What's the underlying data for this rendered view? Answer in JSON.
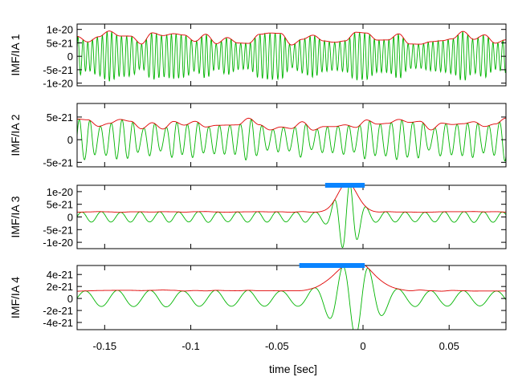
{
  "chart_data": {
    "type": "line",
    "xlabel": "time [sec]",
    "xlim": [
      -0.166,
      0.083
    ],
    "xticks": [
      -0.15,
      -0.1,
      -0.05,
      0,
      0.05
    ],
    "xtick_labels": [
      "-0.15",
      "-0.1",
      "-0.05",
      "0",
      "0.05"
    ],
    "series_colors": {
      "imf": "#00b400",
      "amplitude": "#e00000",
      "highlight": "#0a84ff"
    },
    "panels": [
      {
        "ylabel": "IMF/IA 1",
        "ylim": [
          -1.1e-20,
          1.2e-20
        ],
        "yticks": [
          1e-20,
          5e-21,
          0,
          -5e-21,
          -1e-20
        ],
        "ytick_labels": [
          "1e-20",
          "5e-21",
          "0",
          "-5e-21",
          "-1e-20"
        ],
        "series": [
          {
            "name": "IMF",
            "kind": "noise",
            "freq_hz": 300,
            "envelope": [
              [
                -0.166,
                6.5e-21
              ],
              [
                0.083,
                6.5e-21
              ]
            ],
            "variability": 0.45
          },
          {
            "name": "Instantaneous amplitude",
            "kind": "envelope",
            "of": "IMF"
          }
        ]
      },
      {
        "ylabel": "IMF/IA 2",
        "ylim": [
          -6e-21,
          8e-21
        ],
        "yticks": [
          5e-21,
          0,
          -5e-21
        ],
        "ytick_labels": [
          "5e-21",
          "0",
          "-5e-21"
        ],
        "series": [
          {
            "name": "IMF",
            "kind": "noise",
            "freq_hz": 140,
            "envelope": [
              [
                -0.166,
                3.5e-21
              ],
              [
                0.083,
                3.5e-21
              ]
            ],
            "variability": 0.4
          },
          {
            "name": "Instantaneous amplitude",
            "kind": "envelope",
            "of": "IMF"
          }
        ]
      },
      {
        "ylabel": "IMF/IA 3",
        "ylim": [
          -1.25e-20,
          1.25e-20
        ],
        "yticks": [
          1e-20,
          5e-21,
          0,
          -5e-21,
          -1e-20
        ],
        "ytick_labels": [
          "1e-20",
          "5e-21",
          "0",
          "-5e-21",
          "-1e-20"
        ],
        "highlight": [
          -0.022,
          0.001
        ],
        "series": [
          {
            "name": "IMF",
            "kind": "burst",
            "freq_hz": 80,
            "base": 1.8e-21,
            "peak_t": -0.009,
            "peak_amp": 1.15e-20,
            "width": 0.008
          },
          {
            "name": "Instantaneous amplitude",
            "kind": "envelope",
            "of": "IMF"
          }
        ]
      },
      {
        "ylabel": "IMF/IA 4",
        "ylim": [
          -5.2e-21,
          5.5e-21
        ],
        "yticks": [
          4e-21,
          2e-21,
          0,
          -2e-21,
          -4e-21
        ],
        "ytick_labels": [
          "4e-21",
          "2e-21",
          "0",
          "-2e-21",
          "-4e-21"
        ],
        "highlight": [
          -0.037,
          0.001
        ],
        "series": [
          {
            "name": "IMF",
            "kind": "burst",
            "freq_hz": 48,
            "base": 1.2e-21,
            "peak_t": -0.005,
            "peak_amp": 4.9e-21,
            "width": 0.015
          },
          {
            "name": "Instantaneous amplitude",
            "kind": "envelope",
            "of": "IMF"
          }
        ]
      }
    ]
  }
}
